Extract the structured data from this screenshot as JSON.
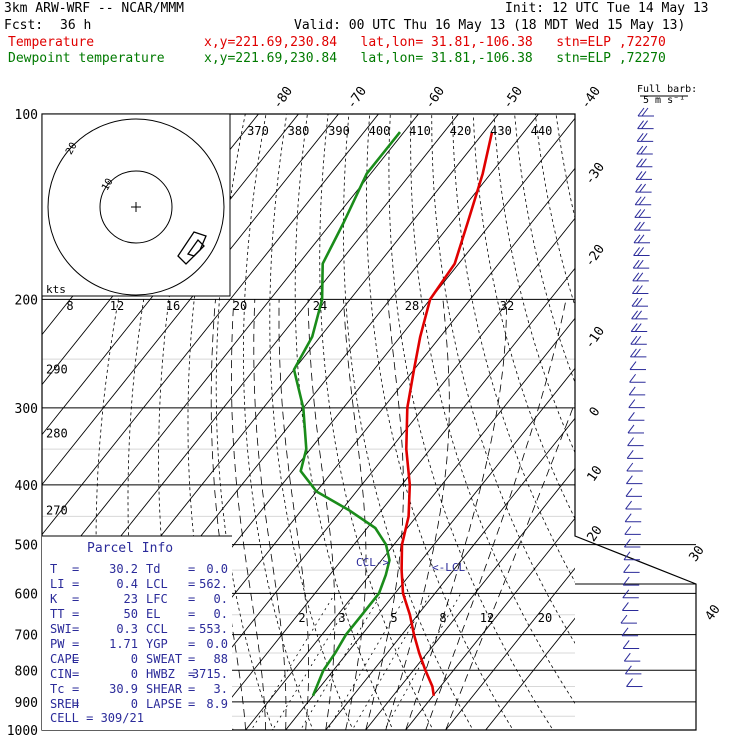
{
  "header": {
    "model": "3km ARW-WRF -- NCAR/MMM",
    "init": "Init: 12 UTC Tue 14 May 13",
    "fcst_label": "Fcst:",
    "fcst_value": "36 h",
    "valid": "Valid: 00 UTC Thu 16 May 13 (18 MDT Wed 15 May 13)",
    "temp_label": "Temperature",
    "dew_label": "Dewpoint temperature",
    "loc": "x,y=221.69,230.84   lat,lon= 31.81,-106.38   stn=ELP ,72270"
  },
  "colors": {
    "temperature": "#e00000",
    "dewpoint": "#1a8c1a",
    "barbs": "#2b2b9a",
    "grid": "#000000"
  },
  "chart_data": {
    "type": "line",
    "title": "",
    "x_axis": "temperature (°C), skewed",
    "y_axis": "pressure (hPa), log scale",
    "pressure_ticks": [
      100,
      200,
      300,
      400,
      500,
      600,
      700,
      800,
      900,
      1000
    ],
    "temperature_ticks": [
      -80,
      -70,
      -60,
      -50,
      -40,
      -30,
      -20,
      -10,
      0,
      10,
      20,
      30,
      40
    ],
    "mixing_ratio_labels": [
      "2",
      "3",
      "5",
      "8",
      "12",
      "20"
    ],
    "theta_labels": [
      {
        "label": "290",
        "p": 260
      },
      {
        "label": "280",
        "p": 330
      },
      {
        "label": "270",
        "p": 440
      }
    ],
    "thetae_labels": [
      "370",
      "380",
      "390",
      "400",
      "410",
      "420",
      "430",
      "440"
    ],
    "annotations": [
      "CCL->",
      "<-LCL"
    ],
    "series": [
      {
        "name": "Temperature",
        "color": "#e00000",
        "p": [
          107,
          125,
          150,
          175,
          200,
          230,
          260,
          300,
          350,
          400,
          450,
          500,
          550,
          600,
          650,
          700,
          750,
          800,
          850,
          880
        ],
        "t": [
          -68,
          -62,
          -56,
          -51,
          -50,
          -45,
          -40,
          -34,
          -26,
          -18,
          -12,
          -8,
          -3,
          2,
          8,
          13,
          18,
          23,
          28,
          30.2
        ]
      },
      {
        "name": "Dewpoint temperature",
        "color": "#1a8c1a",
        "p": [
          107,
          125,
          150,
          175,
          200,
          230,
          260,
          300,
          350,
          380,
          410,
          440,
          470,
          500,
          530,
          560,
          600,
          650,
          700,
          750,
          800,
          880
        ],
        "t": [
          -91,
          -91,
          -87,
          -84,
          -77,
          -72,
          -70,
          -60,
          -51,
          -48,
          -40,
          -28,
          -18,
          -12,
          -8,
          -6,
          -4,
          -4,
          -4,
          -3,
          -2.5,
          0
        ]
      }
    ],
    "hodograph": {
      "units": "kts",
      "ring_labels": [
        "10",
        "20"
      ],
      "speed_ticks": [
        "8",
        "12",
        "16",
        "20",
        "24",
        "28",
        "32"
      ]
    },
    "barbs": {
      "legend_title": "Full barb:",
      "legend_value": "5 m s⁻¹",
      "count": 46
    }
  },
  "parcel_info": {
    "title": "Parcel Info",
    "rows": [
      {
        "k1": "T",
        "v1": "30.2",
        "k2": "Td",
        "v2": "0.0"
      },
      {
        "k1": "LI",
        "v1": "0.4",
        "k2": "LCL",
        "v2": "562."
      },
      {
        "k1": "K",
        "v1": "23",
        "k2": "LFC",
        "v2": "0."
      },
      {
        "k1": "TT",
        "v1": "50",
        "k2": "EL",
        "v2": "0."
      },
      {
        "k1": "SWI",
        "v1": "0.3",
        "k2": "CCL",
        "v2": "553."
      },
      {
        "k1": "PW",
        "v1": "1.71",
        "k2": "YGP",
        "v2": "0.0"
      },
      {
        "k1": "CAPE",
        "v1": "0",
        "k2": "SWEAT",
        "v2": "88"
      },
      {
        "k1": "CIN",
        "v1": "0",
        "k2": "HWBZ",
        "v2": "3715."
      },
      {
        "k1": "Tc",
        "v1": "30.9",
        "k2": "SHEAR",
        "v2": "3."
      },
      {
        "k1": "SREH",
        "v1": "0",
        "k2": "LAPSE",
        "v2": "8.9"
      }
    ],
    "cell": "CELL = 309/21"
  }
}
